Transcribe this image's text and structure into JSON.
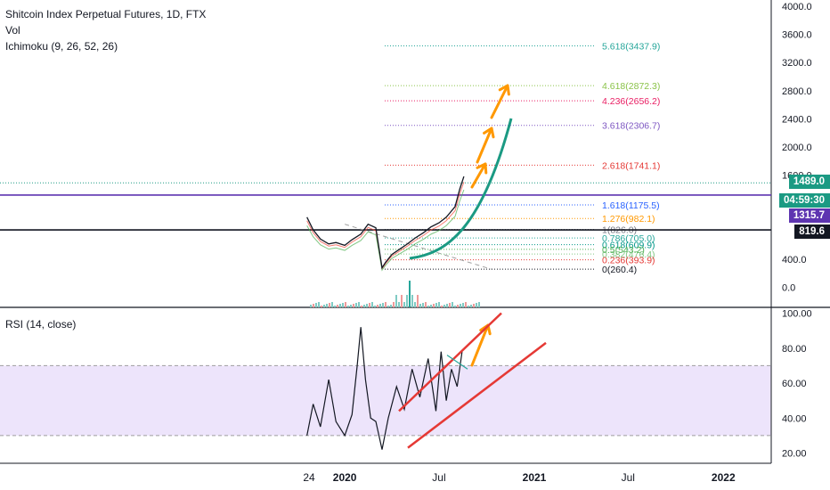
{
  "chart_data": [
    {
      "type": "line",
      "title": "Shitcoin Index Perpetual Futures, 1D, FTX",
      "indicators": [
        "Vol",
        "Ichimoku (9, 26, 52, 26)"
      ],
      "ylim": [
        -100,
        4000
      ],
      "y_ticks": [
        "4000.0",
        "3600.0",
        "3200.0",
        "2800.0",
        "2400.0",
        "2000.0",
        "1600.0",
        "400.0",
        "0.0"
      ],
      "x_ticks": [
        "24",
        "2020",
        "Jul",
        "2021",
        "Jul",
        "2022"
      ],
      "series": [
        {
          "x": [
            "2019-10-20",
            "2019-11-01",
            "2019-11-15",
            "2019-12-01",
            "2019-12-15",
            "2020-01-01",
            "2020-01-15",
            "2020-02-01",
            "2020-02-15",
            "2020-03-01",
            "2020-03-13",
            "2020-03-20",
            "2020-04-01",
            "2020-04-15",
            "2020-05-01",
            "2020-05-15",
            "2020-06-01",
            "2020-06-15",
            "2020-07-01",
            "2020-07-15",
            "2020-08-01",
            "2020-08-10",
            "2020-08-18"
          ],
          "values": [
            1000,
            820,
            690,
            620,
            640,
            600,
            680,
            760,
            900,
            850,
            280,
            360,
            470,
            540,
            620,
            700,
            780,
            860,
            920,
            1000,
            1150,
            1400,
            1580
          ]
        }
      ],
      "price_labels": [
        {
          "text": "1489.0",
          "color": "#1b9a83"
        },
        {
          "text": "04:59:30",
          "color": "#1b9a83"
        },
        {
          "text": "1315.7",
          "color": "#5e35b1"
        },
        {
          "text": "819.6",
          "color": "#131722"
        }
      ],
      "horizontal_levels": [
        {
          "value": 1489.0,
          "color": "#1b9a83",
          "style": "dotted"
        },
        {
          "value": 1315.7,
          "color": "#5e35b1",
          "style": "solid"
        },
        {
          "value": 819.6,
          "color": "#131722",
          "style": "solid"
        }
      ],
      "fib_levels": [
        {
          "label": "5.618(3437.9)",
          "value": 3437.9,
          "color": "#26a69a"
        },
        {
          "label": "4.618(2872.3)",
          "value": 2872.3,
          "color": "#8bc34a"
        },
        {
          "label": "4.236(2656.2)",
          "value": 2656.2,
          "color": "#e91e63"
        },
        {
          "label": "3.618(2306.7)",
          "value": 2306.7,
          "color": "#7e57c2"
        },
        {
          "label": "2.618(1741.1)",
          "value": 1741.1,
          "color": "#e53935"
        },
        {
          "label": "1.618(1175.5)",
          "value": 1175.5,
          "color": "#2962ff"
        },
        {
          "label": "1.276(982.1)",
          "value": 982.1,
          "color": "#ff9800"
        },
        {
          "label": "1(826.0)",
          "value": 826.0,
          "color": "#787b86"
        },
        {
          "label": "0.786(705.0)",
          "value": 705.0,
          "color": "#26a69a"
        },
        {
          "label": "0.618(609.9)",
          "value": 609.9,
          "color": "#009688"
        },
        {
          "label": "0.5(543.2)",
          "value": 543.2,
          "color": "#4caf50"
        },
        {
          "label": "0.382(476.4)",
          "value": 476.4,
          "color": "#81c784"
        },
        {
          "label": "0.236(393.9)",
          "value": 393.9,
          "color": "#e53935"
        },
        {
          "label": "0(260.4)",
          "value": 260.4,
          "color": "#131722"
        }
      ]
    },
    {
      "type": "line",
      "title": "RSI (14, close)",
      "ylim": [
        15,
        100
      ],
      "y_ticks": [
        "100.00",
        "80.00",
        "60.00",
        "40.00",
        "20.00"
      ],
      "band": [
        30,
        70
      ],
      "series": [
        {
          "x": [
            "2019-10-20",
            "2019-11-01",
            "2019-11-15",
            "2019-12-01",
            "2019-12-15",
            "2020-01-01",
            "2020-01-15",
            "2020-01-25",
            "2020-02-01",
            "2020-02-10",
            "2020-02-20",
            "2020-03-01",
            "2020-03-13",
            "2020-03-25",
            "2020-04-10",
            "2020-04-25",
            "2020-05-10",
            "2020-05-25",
            "2020-06-10",
            "2020-06-25",
            "2020-07-05",
            "2020-07-15",
            "2020-07-25",
            "2020-08-05",
            "2020-08-15"
          ],
          "values": [
            30,
            48,
            35,
            62,
            38,
            30,
            42,
            70,
            92,
            62,
            40,
            38,
            22,
            40,
            58,
            45,
            68,
            52,
            74,
            44,
            78,
            50,
            68,
            58,
            79
          ]
        }
      ]
    }
  ],
  "legend": {
    "title": "Shitcoin Index Perpetual Futures, 1D, FTX",
    "vol": "Vol",
    "ichimoku": "Ichimoku (9, 26, 52, 26)",
    "rsi": "RSI (14, close)"
  },
  "colors": {
    "fib_teal": "#1b9a83",
    "channel_red": "#e53935",
    "projection_orange": "#ff9800",
    "trend_teal": "#1b9a83",
    "rsi_band": "#ede4fb"
  }
}
